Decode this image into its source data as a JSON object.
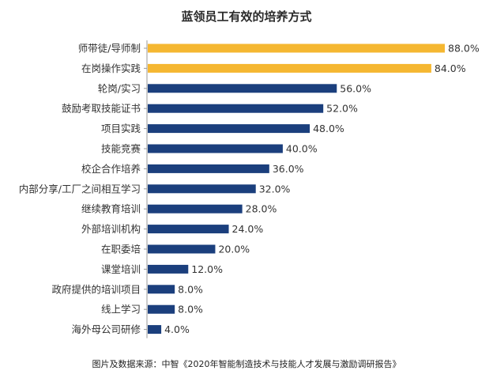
{
  "chart_data": {
    "type": "bar",
    "orientation": "horizontal",
    "title": "蓝领员工有效的培养方式",
    "source": "图片及数据来源：中智《2020年智能制造技术与技能人才发展与激励调研报告》",
    "categories": [
      "师带徒/导师制",
      "在岗操作实践",
      "轮岗/实习",
      "鼓励考取技能证书",
      "项目实践",
      "技能竞赛",
      "校企合作培养",
      "内部分享/工厂之间相互学习",
      "继续教育培训",
      "外部培训机构",
      "在职委培",
      "课堂培训",
      "政府提供的培训项目",
      "线上学习",
      "海外母公司研修"
    ],
    "values": [
      88.0,
      84.0,
      56.0,
      52.0,
      48.0,
      40.0,
      36.0,
      32.0,
      28.0,
      24.0,
      20.0,
      12.0,
      8.0,
      8.0,
      4.0
    ],
    "value_labels": [
      "88.0%",
      "84.0%",
      "56.0%",
      "52.0%",
      "48.0%",
      "40.0%",
      "36.0%",
      "32.0%",
      "28.0%",
      "24.0%",
      "20.0%",
      "12.0%",
      "8.0%",
      "8.0%",
      "4.0%"
    ],
    "highlight_count": 2,
    "colors": {
      "highlight": "#F5B731",
      "default": "#1B3F7D",
      "axis": "#999999",
      "text": "#333333"
    },
    "xlim": [
      0,
      88
    ]
  }
}
